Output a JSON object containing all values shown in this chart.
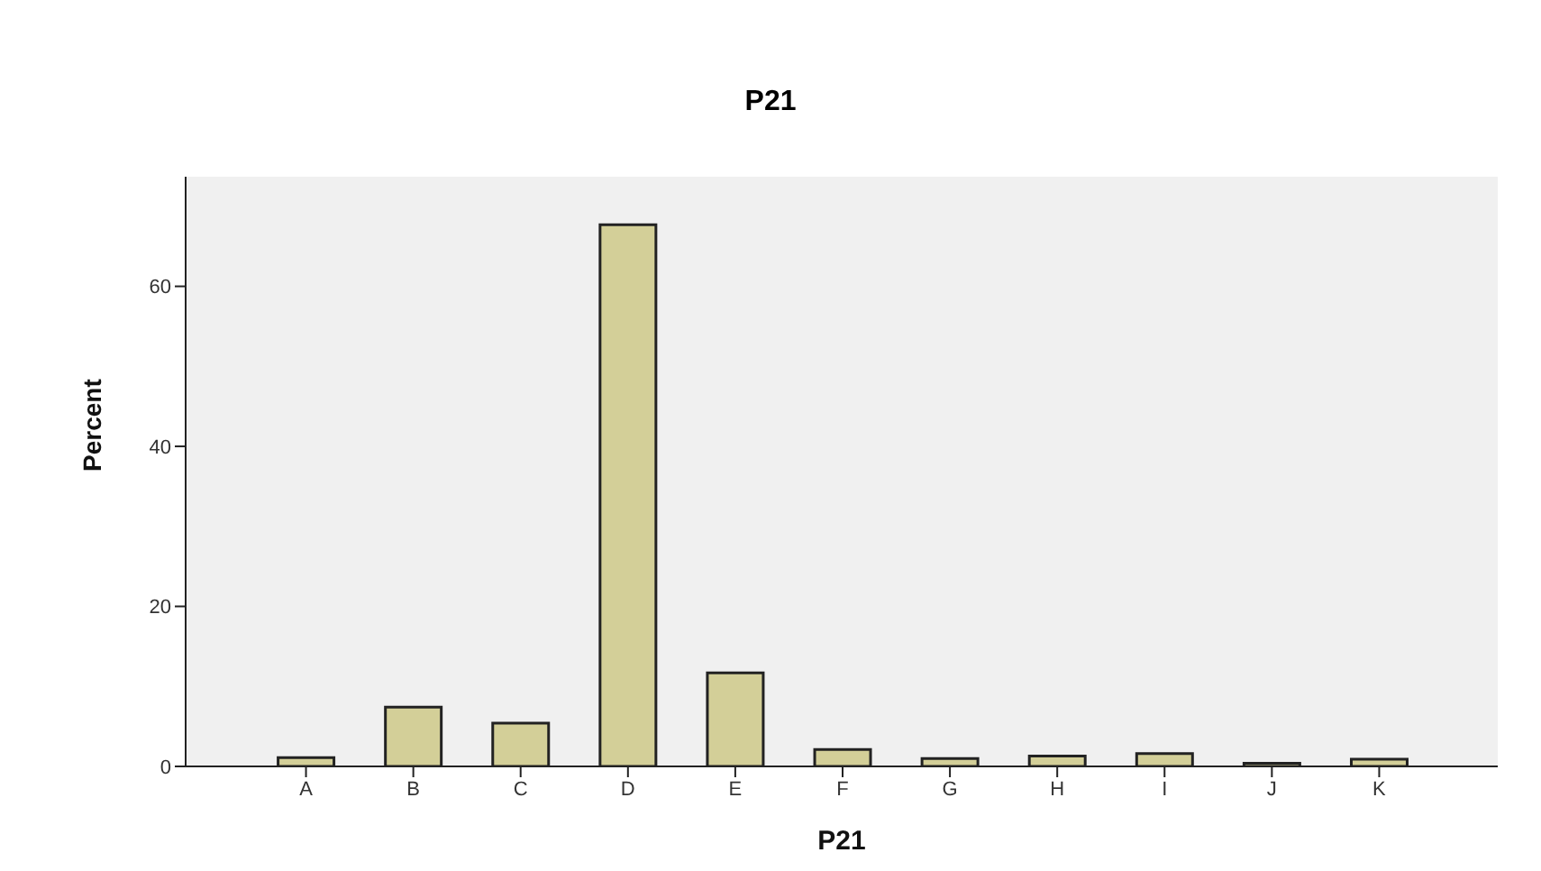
{
  "chart_data": {
    "type": "bar",
    "title": "P21",
    "xlabel": "P21",
    "ylabel": "Percent",
    "categories": [
      "A",
      "B",
      "C",
      "D",
      "E",
      "F",
      "G",
      "H",
      "I",
      "J",
      "K"
    ],
    "values": [
      1.1,
      7.4,
      5.4,
      67.7,
      11.7,
      2.1,
      1.0,
      1.3,
      1.6,
      0.4,
      0.9
    ],
    "color": "#d3cf98",
    "ylim": [
      0,
      73.7
    ],
    "yticks": [
      0,
      20,
      40,
      60
    ],
    "grid": false,
    "legend": false
  }
}
